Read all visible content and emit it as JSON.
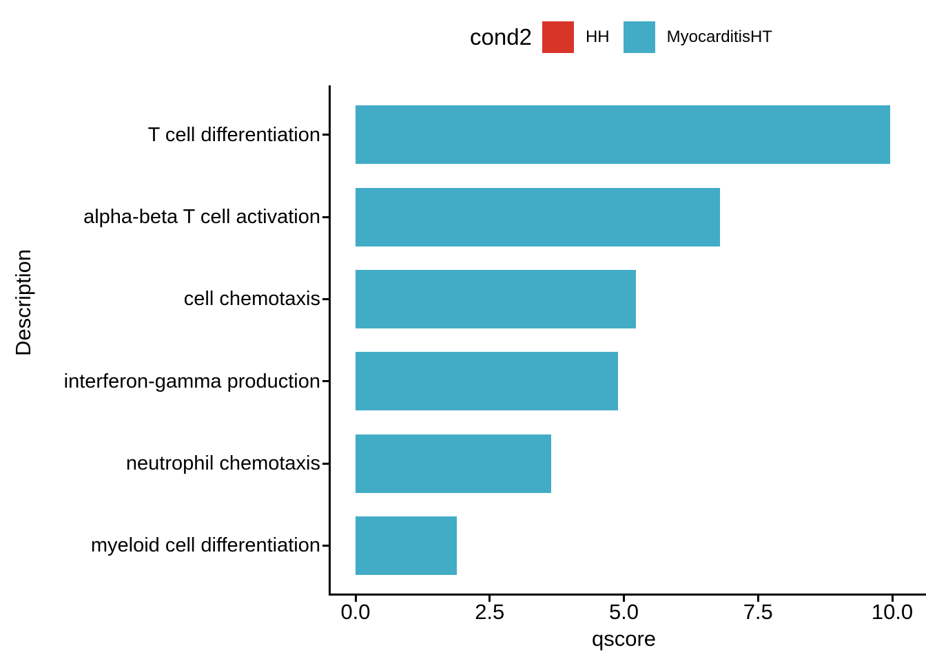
{
  "legend": {
    "title": "cond2",
    "items": [
      {
        "label": "HH",
        "color": "#D93428"
      },
      {
        "label": "MyocarditisHT",
        "color": "#42ACC6"
      }
    ]
  },
  "chart_data": {
    "type": "bar",
    "orientation": "horizontal",
    "title": "",
    "xlabel": "qscore",
    "ylabel": "Description",
    "legend_title": "cond2",
    "legend_position": "top",
    "grid": false,
    "categories": [
      "T cell differentiation",
      "alpha-beta T cell activation",
      "cell chemotaxis",
      "interferon-gamma production",
      "neutrophil chemotaxis",
      "myeloid cell differentiation"
    ],
    "series": [
      {
        "name": "MyocarditisHT",
        "color": "#42ACC6",
        "values": [
          9.96,
          6.79,
          5.22,
          4.89,
          3.65,
          1.89
        ]
      }
    ],
    "xlim": [
      0,
      10.6
    ],
    "x_ticks": [
      {
        "value": 0,
        "label": "0.0"
      },
      {
        "value": 2.5,
        "label": "2.5"
      },
      {
        "value": 5,
        "label": "5.0"
      },
      {
        "value": 7.5,
        "label": "7.5"
      },
      {
        "value": 10,
        "label": "10.0"
      }
    ]
  }
}
